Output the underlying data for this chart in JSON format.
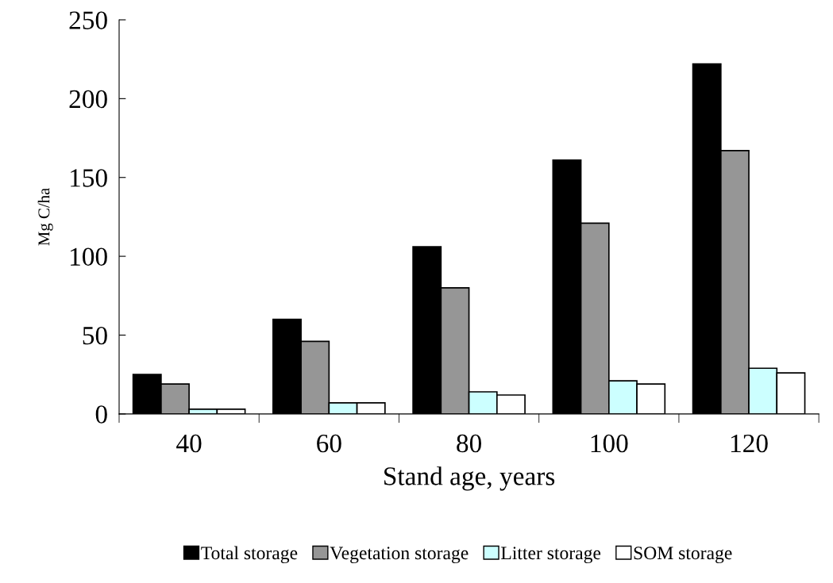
{
  "chart_data": {
    "type": "bar",
    "xlabel": "Stand age, years",
    "ylabel": "Mg C/ha",
    "categories": [
      "40",
      "60",
      "80",
      "100",
      "120"
    ],
    "series": [
      {
        "name": "Total storage",
        "color": "#000000",
        "values": [
          25,
          60,
          106,
          161,
          222
        ]
      },
      {
        "name": "Vegetation storage",
        "color": "#969696",
        "values": [
          19,
          46,
          80,
          121,
          167
        ]
      },
      {
        "name": "Litter storage",
        "color": "#ccffff",
        "values": [
          3,
          7,
          14,
          21,
          29
        ]
      },
      {
        "name": "SOM storage",
        "color": "#ffffff",
        "values": [
          3,
          7,
          12,
          19,
          26
        ]
      }
    ],
    "ylim": [
      0,
      250
    ],
    "yticks": [
      0,
      50,
      100,
      150,
      200,
      250
    ],
    "grid": false,
    "legend": "bottom"
  }
}
